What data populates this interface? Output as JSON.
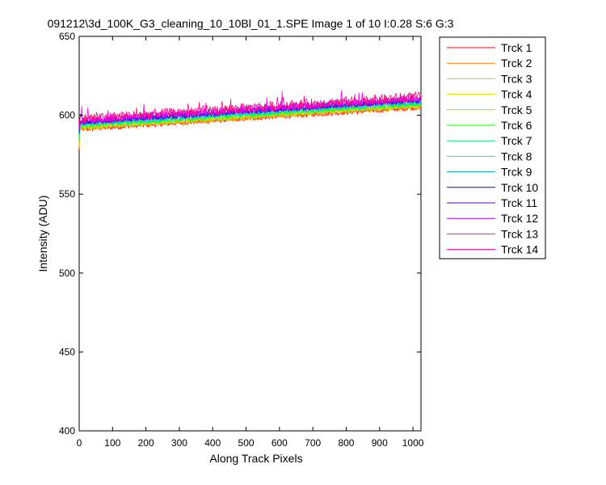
{
  "chart_data": {
    "type": "line",
    "title": "091212\\3d_100K_G3_cleaning_10_10Bl_01_1.SPE  Image 1 of 10  I:0.28  S:6  G:3",
    "xlabel": "Along Track Pixels",
    "ylabel": "Intensity (ADU)",
    "xlim": [
      0,
      1024
    ],
    "ylim": [
      400,
      650
    ],
    "xticks": [
      0,
      100,
      200,
      300,
      400,
      500,
      600,
      700,
      800,
      900,
      1000
    ],
    "yticks": [
      400,
      450,
      500,
      550,
      600,
      650
    ],
    "grid": false,
    "legend_position": "outside-right-top",
    "series": [
      {
        "name": "Trck 1",
        "color": "#ff0000",
        "start": 591,
        "end": 605,
        "noise": 1.5
      },
      {
        "name": "Trck 2",
        "color": "#ff8000",
        "start": 591.5,
        "end": 605.5,
        "noise": 1.5
      },
      {
        "name": "Trck 3",
        "color": "#e0c000",
        "start": 592,
        "end": 606,
        "noise": 1.5
      },
      {
        "name": "Trck 4",
        "color": "#d0e000",
        "start": 592.5,
        "end": 606.5,
        "noise": 1.5
      },
      {
        "name": "Trck 5",
        "color": "#80f000",
        "start": 593,
        "end": 607,
        "noise": 1.5
      },
      {
        "name": "Trck 6",
        "color": "#00ff00",
        "start": 593.5,
        "end": 607.5,
        "noise": 1.5
      },
      {
        "name": "Trck 7",
        "color": "#00e080",
        "start": 594,
        "end": 608,
        "noise": 1.5
      },
      {
        "name": "Trck 8",
        "color": "#00f0d0",
        "start": 594.5,
        "end": 608.5,
        "noise": 1.5
      },
      {
        "name": "Trck 9",
        "color": "#00a0c0",
        "start": 595,
        "end": 609,
        "noise": 1.5
      },
      {
        "name": "Trck 10",
        "color": "#0000ff",
        "start": 595.5,
        "end": 609.5,
        "noise": 1.5
      },
      {
        "name": "Trck 11",
        "color": "#6000c0",
        "start": 596,
        "end": 610,
        "noise": 2
      },
      {
        "name": "Trck 12",
        "color": "#a000ff",
        "start": 596.5,
        "end": 610.5,
        "noise": 2
      },
      {
        "name": "Trck 13",
        "color": "#ff00ff",
        "start": 597,
        "end": 611,
        "noise": 2.5
      },
      {
        "name": "Trck 14",
        "color": "#ff0080",
        "start": 598,
        "end": 612,
        "noise": 3
      }
    ]
  }
}
